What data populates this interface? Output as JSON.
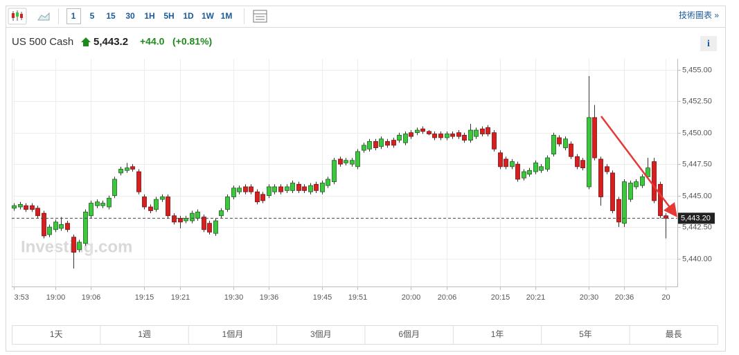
{
  "toolbar": {
    "intervals": [
      "1",
      "5",
      "15",
      "30",
      "1H",
      "5H",
      "1D",
      "1W",
      "1M"
    ],
    "link": "技術圖表 »"
  },
  "header": {
    "instrument": "US 500 Cash",
    "price": "5,443.2",
    "change": "+44.0",
    "change_pct": "(+0.81%)",
    "info": "i"
  },
  "watermark": "Investing.com",
  "range_buttons": [
    "1天",
    "1週",
    "1個月",
    "3個月",
    "6個月",
    "1年",
    "5年",
    "最長"
  ],
  "chart_data": {
    "type": "candlestick",
    "categories": [
      "3:53",
      null,
      null,
      null,
      null,
      null,
      null,
      "19:00",
      null,
      null,
      null,
      null,
      null,
      "19:06",
      null,
      null,
      null,
      null,
      null,
      null,
      null,
      null,
      "19:15",
      null,
      null,
      null,
      null,
      null,
      "19:21",
      null,
      null,
      null,
      null,
      null,
      null,
      null,
      null,
      "19:30",
      null,
      null,
      null,
      null,
      null,
      "19:36",
      null,
      null,
      null,
      null,
      null,
      null,
      null,
      null,
      "19:45",
      null,
      null,
      null,
      null,
      null,
      "19:51",
      null,
      null,
      null,
      null,
      null,
      null,
      null,
      null,
      "20:00",
      null,
      null,
      null,
      null,
      null,
      "20:06",
      null,
      null,
      null,
      null,
      null,
      null,
      null,
      null,
      "20:15",
      null,
      null,
      null,
      null,
      null,
      "20:21",
      null,
      null,
      null,
      null,
      null,
      null,
      null,
      null,
      "20:30",
      null,
      null,
      null,
      null,
      null,
      "20:36",
      null,
      null,
      null,
      null,
      null,
      null,
      "20"
    ],
    "open": [
      5444.0,
      5444.1,
      5444.2,
      5444.2,
      5444.0,
      5443.6,
      5441.9,
      5442.3,
      5442.4,
      5442.8,
      5441.7,
      5440.7,
      5441.2,
      5443.4,
      5444.2,
      5444.2,
      5444.1,
      5445.0,
      5446.8,
      5447.0,
      5447.3,
      5446.9,
      5444.9,
      5444.1,
      5443.9,
      5444.7,
      5444.9,
      5443.4,
      5443.2,
      5443.0,
      5443.0,
      5443.2,
      5443.3,
      5442.8,
      5442.0,
      5443.4,
      5443.9,
      5444.9,
      5445.3,
      5445.7,
      5445.7,
      5445.3,
      5445.1,
      5445.0,
      5445.3,
      5445.7,
      5445.4,
      5445.4,
      5445.9,
      5445.7,
      5445.3,
      5445.9,
      5445.3,
      5445.8,
      5446.1,
      5447.9,
      5447.6,
      5447.5,
      5447.3,
      5448.6,
      5448.7,
      5449.3,
      5448.9,
      5449.3,
      5449.4,
      5449.4,
      5449.2,
      5450.0,
      5450.0,
      5450.3,
      5450.1,
      5449.9,
      5449.9,
      5449.6,
      5449.9,
      5450.0,
      5449.8,
      5449.4,
      5449.7,
      5450.3,
      5450.4,
      5450.0,
      5448.4,
      5447.9,
      5447.3,
      5447.5,
      5446.4,
      5446.7,
      5446.9,
      5447.0,
      5447.1,
      5448.3,
      5449.6,
      5448.8,
      5449.1,
      5448.1,
      5447.8,
      5445.7,
      5451.2,
      5447.9,
      5447.3,
      5446.8,
      5444.7,
      5442.8,
      5444.7,
      5445.7,
      5445.8,
      5446.5,
      5447.7,
      5445.9,
      5443.4
    ],
    "high": [
      5444.4,
      5444.5,
      5444.4,
      5444.4,
      5444.2,
      5443.8,
      5442.7,
      5443.1,
      5443.3,
      5443.0,
      5441.9,
      5441.5,
      5443.9,
      5444.6,
      5444.7,
      5444.6,
      5445.0,
      5446.5,
      5447.3,
      5447.6,
      5447.5,
      5447.1,
      5445.1,
      5444.3,
      5444.9,
      5445.1,
      5445.1,
      5443.6,
      5443.4,
      5443.4,
      5443.8,
      5443.9,
      5443.5,
      5443.0,
      5443.2,
      5444.0,
      5445.1,
      5445.8,
      5445.8,
      5445.9,
      5445.9,
      5445.5,
      5445.3,
      5445.9,
      5445.9,
      5445.9,
      5445.9,
      5446.2,
      5446.1,
      5445.9,
      5446.0,
      5446.1,
      5446.2,
      5446.5,
      5448.0,
      5448.1,
      5448.0,
      5448.0,
      5448.7,
      5449.2,
      5449.5,
      5449.5,
      5449.7,
      5449.5,
      5449.6,
      5450.0,
      5450.1,
      5450.2,
      5450.4,
      5450.5,
      5450.2,
      5450.1,
      5450.1,
      5450.1,
      5450.1,
      5450.2,
      5450.0,
      5450.7,
      5450.4,
      5450.5,
      5450.6,
      5450.2,
      5448.6,
      5448.1,
      5447.9,
      5447.7,
      5447.1,
      5447.2,
      5447.8,
      5447.5,
      5448.2,
      5450.0,
      5449.8,
      5449.7,
      5449.3,
      5448.3,
      5448.0,
      5454.5,
      5452.2,
      5448.1,
      5447.5,
      5447.0,
      5444.9,
      5446.3,
      5446.2,
      5446.3,
      5446.7,
      5448.0,
      5448.0,
      5446.1,
      5443.6
    ],
    "low": [
      5443.8,
      5443.9,
      5443.7,
      5443.7,
      5443.2,
      5441.6,
      5441.7,
      5442.1,
      5442.2,
      5442.1,
      5439.2,
      5440.5,
      5441.0,
      5443.2,
      5444.0,
      5444.0,
      5443.9,
      5444.8,
      5446.6,
      5446.8,
      5446.9,
      5445.1,
      5443.9,
      5443.6,
      5443.7,
      5444.5,
      5443.2,
      5442.7,
      5442.4,
      5442.8,
      5442.8,
      5443.0,
      5442.1,
      5441.9,
      5441.8,
      5443.2,
      5443.7,
      5444.7,
      5445.1,
      5445.1,
      5445.1,
      5444.3,
      5444.4,
      5444.8,
      5445.1,
      5445.1,
      5445.2,
      5445.2,
      5445.2,
      5445.2,
      5445.1,
      5445.2,
      5445.1,
      5445.6,
      5445.9,
      5447.3,
      5447.4,
      5447.3,
      5447.1,
      5448.4,
      5448.5,
      5448.6,
      5448.7,
      5448.8,
      5448.8,
      5449.2,
      5449.0,
      5449.5,
      5449.8,
      5449.9,
      5449.8,
      5449.4,
      5449.4,
      5449.4,
      5449.5,
      5449.5,
      5449.2,
      5449.2,
      5449.5,
      5449.7,
      5449.7,
      5448.5,
      5447.1,
      5447.1,
      5447.1,
      5446.1,
      5446.2,
      5446.5,
      5446.7,
      5446.8,
      5446.9,
      5448.1,
      5448.9,
      5448.6,
      5447.9,
      5447.1,
      5447.0,
      5445.5,
      5447.8,
      5444.2,
      5446.7,
      5443.6,
      5442.5,
      5442.5,
      5444.5,
      5445.5,
      5445.6,
      5446.3,
      5444.4,
      5443.2,
      5441.6
    ],
    "close": [
      5444.2,
      5444.3,
      5443.9,
      5443.9,
      5443.4,
      5441.8,
      5442.5,
      5442.9,
      5442.7,
      5442.3,
      5440.5,
      5441.3,
      5443.7,
      5444.4,
      5444.5,
      5444.4,
      5444.8,
      5446.3,
      5447.1,
      5447.2,
      5447.1,
      5445.3,
      5444.1,
      5443.8,
      5444.7,
      5444.9,
      5443.4,
      5442.9,
      5442.9,
      5443.2,
      5443.6,
      5443.7,
      5442.3,
      5442.1,
      5443.0,
      5443.8,
      5444.9,
      5445.6,
      5445.6,
      5445.3,
      5445.3,
      5444.5,
      5444.6,
      5445.7,
      5445.7,
      5445.3,
      5445.7,
      5446.0,
      5445.4,
      5445.4,
      5445.8,
      5445.4,
      5446.0,
      5446.3,
      5447.8,
      5447.5,
      5447.8,
      5447.8,
      5448.5,
      5449.0,
      5449.3,
      5448.8,
      5449.5,
      5449.0,
      5449.0,
      5449.8,
      5449.9,
      5449.7,
      5450.2,
      5450.1,
      5449.9,
      5449.6,
      5449.6,
      5449.9,
      5449.7,
      5449.7,
      5449.4,
      5450.2,
      5450.2,
      5449.9,
      5449.9,
      5448.7,
      5447.3,
      5447.3,
      5447.7,
      5446.3,
      5446.9,
      5447.0,
      5447.6,
      5447.3,
      5448.0,
      5449.8,
      5449.1,
      5449.5,
      5448.1,
      5447.3,
      5447.2,
      5451.2,
      5448.0,
      5444.9,
      5446.9,
      5443.8,
      5442.9,
      5446.1,
      5446.0,
      5446.1,
      5446.5,
      5447.2,
      5444.6,
      5443.4,
      5443.2
    ],
    "up_color": "#3cc83c",
    "down_color": "#d81f1f",
    "last_price": {
      "value": 5443.2,
      "label": "5,443.20"
    },
    "ylim": [
      5438.0,
      5455.7
    ],
    "yticks": [
      {
        "value": 5440,
        "label": "5,440.00"
      },
      {
        "value": 5442.5,
        "label": "5,442.50"
      },
      {
        "value": 5445,
        "label": "5,445.00"
      },
      {
        "value": 5447.5,
        "label": "5,447.50"
      },
      {
        "value": 5450,
        "label": "5,450.00"
      },
      {
        "value": 5452.5,
        "label": "5,452.50"
      },
      {
        "value": 5455,
        "label": "5,455.00"
      }
    ],
    "grid": true
  }
}
